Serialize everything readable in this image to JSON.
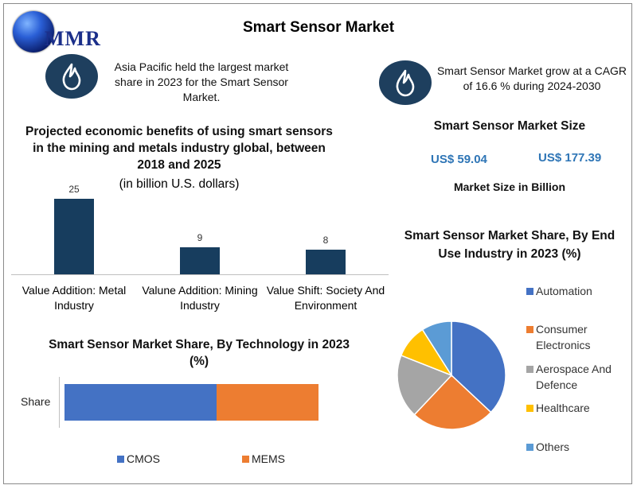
{
  "brand": {
    "logo_text": "MMR"
  },
  "page": {
    "title": "Smart Sensor Market"
  },
  "notes": {
    "left": "Asia Pacific held the largest market share in 2023 for the Smart Sensor Market.",
    "right": "Smart Sensor Market grow at a CAGR of 16.6 % during 2024-2030"
  },
  "icons": {
    "left": "flame-icon",
    "right": "flame-icon"
  },
  "chart_data": [
    {
      "type": "bar",
      "title": "Projected economic benefits of using smart sensors in the mining and metals industry global, between 2018 and 2025",
      "subtitle": "(in billion U.S. dollars)",
      "categories": [
        "Value Addition: Metal Industry",
        "Valune Addition: Mining Industry",
        "Value Shift: Society And Environment"
      ],
      "values": [
        25,
        9,
        8
      ],
      "ylim": [
        0,
        27
      ],
      "color": "#173d5e"
    },
    {
      "type": "bar",
      "orientation": "horizontal-stacked",
      "title": "Smart Sensor Market Share, By Technology in 2023 (%)",
      "categories": [
        "Share"
      ],
      "series": [
        {
          "name": "CMOS",
          "values": [
            60
          ],
          "color": "#4472c4"
        },
        {
          "name": "MEMS",
          "values": [
            40
          ],
          "color": "#ed7d31"
        }
      ],
      "legend": "bottom"
    },
    {
      "type": "table",
      "title": "Smart Sensor Market Size",
      "values": [
        "US$ 59.04",
        "US$ 177.39"
      ],
      "caption": "Market Size in Billion"
    },
    {
      "type": "pie",
      "title": "Smart Sensor Market Share, By End Use Industry in 2023 (%)",
      "labels": [
        "Automation",
        "Consumer Electronics",
        "Aerospace And Defence",
        "Healthcare",
        "Others"
      ],
      "values": [
        37,
        25,
        19,
        10,
        9
      ],
      "colors": [
        "#4472c4",
        "#ed7d31",
        "#a5a5a5",
        "#ffc000",
        "#5b9bd5"
      ],
      "legend": "right"
    }
  ]
}
